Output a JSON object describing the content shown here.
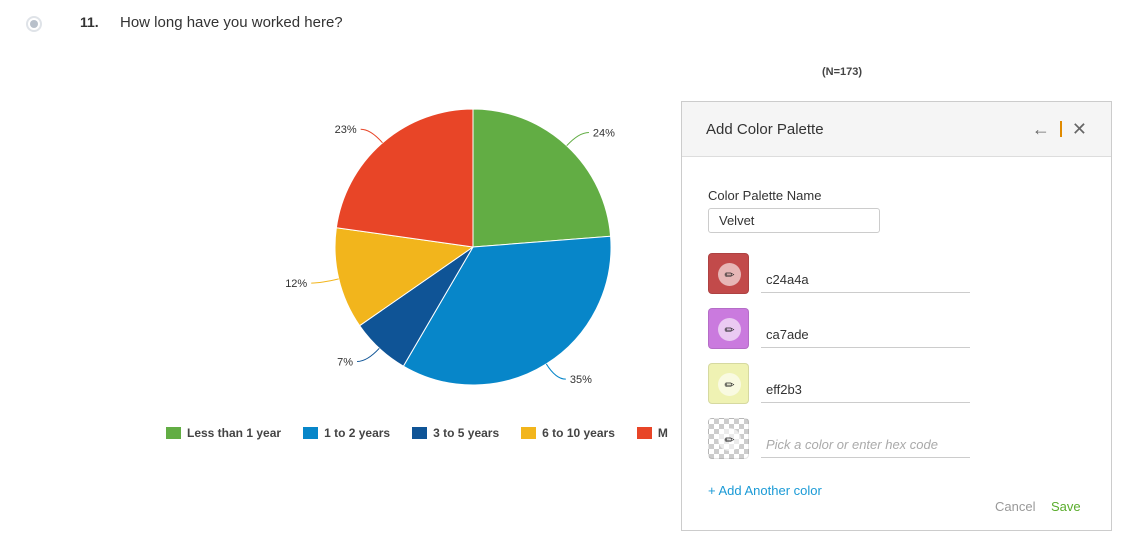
{
  "question": {
    "number": "11.",
    "text": "How long have you worked here?"
  },
  "chart_data": {
    "type": "pie",
    "note_n": "(N=173)",
    "categories": [
      "Less than 1 year",
      "1 to 2 years",
      "3 to 5 years",
      "6 to 10 years",
      "M"
    ],
    "values": [
      24,
      35,
      7,
      12,
      23
    ],
    "labels": [
      "24%",
      "35%",
      "7%",
      "12%",
      "23%"
    ],
    "colors": [
      "#62ad44",
      "#0786c9",
      "#0f5496",
      "#f2b51c",
      "#e84527"
    ],
    "legend_position": "bottom"
  },
  "panel": {
    "title": "Add Color Palette",
    "name_label": "Color Palette Name",
    "name_value": "Velvet",
    "colors": [
      {
        "hex": "c24a4a",
        "swatch": "#c24a4a"
      },
      {
        "hex": "ca7ade",
        "swatch": "#ca7ade"
      },
      {
        "hex": "eff2b3",
        "swatch": "#eff2b3"
      }
    ],
    "empty_placeholder": "Pick a color or enter hex code",
    "add_label": "+ Add Another color",
    "cancel_label": "Cancel",
    "save_label": "Save"
  }
}
